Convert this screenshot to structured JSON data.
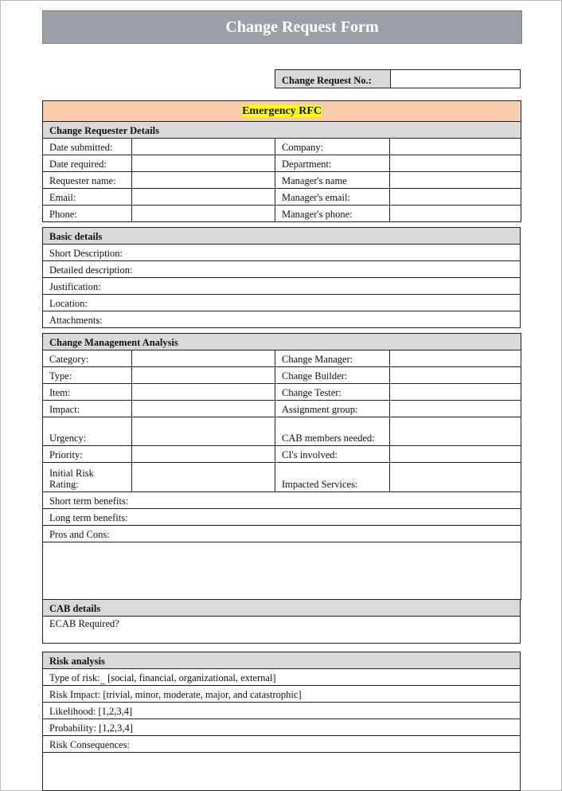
{
  "title": "Change Request Form",
  "change_request_no_label": "Change Request No.:",
  "change_request_no_value": "",
  "rfc_type": "Emergency RFC",
  "requester": {
    "heading": "Change Requester Details",
    "rows": [
      [
        "Date submitted:",
        "Company:"
      ],
      [
        "Date required:",
        "Department:"
      ],
      [
        "Requester name:",
        "Manager's name"
      ],
      [
        "Email:",
        "Manager's email:"
      ],
      [
        "Phone:",
        "Manager's phone:"
      ]
    ]
  },
  "basic": {
    "heading": "Basic details",
    "rows": [
      "Short Description:",
      "Detailed description:",
      "Justification:",
      "Location:",
      "Attachments:"
    ]
  },
  "cma": {
    "heading": "Change Management Analysis",
    "pairs": [
      [
        "Category:",
        "Change Manager:"
      ],
      [
        "Type:",
        "Change Builder:"
      ],
      [
        "Item:",
        "Change Tester:"
      ],
      [
        "Impact:",
        "Assignment group:"
      ],
      [
        "Urgency:",
        "CAB members needed:"
      ],
      [
        "Priority:",
        "CI's involved:"
      ],
      [
        "Initial Risk Rating:",
        "Impacted Services:"
      ]
    ],
    "rows": [
      "Short term benefits:",
      "Long term benefits:",
      "Pros and Cons:"
    ]
  },
  "cab": {
    "heading": "CAB details",
    "rows": [
      "ECAB Required?"
    ]
  },
  "risk": {
    "heading": "Risk analysis",
    "type_label": "Type of risk",
    "type_sep": ":",
    "type_value": " [social, financial, organizational, external]",
    "rows": [
      "Risk Impact: [trivial, minor, moderate, major, and catastrophic]",
      "Likelihood: [1,2,3,4]",
      "Probability: [1,2,3,4]",
      "Risk Consequences:"
    ]
  },
  "colors": {
    "title_bar": "#9ba0a8",
    "rfc_band": "#f8cbad",
    "highlight": "#ffff00",
    "section_header": "#d9d9d9"
  }
}
